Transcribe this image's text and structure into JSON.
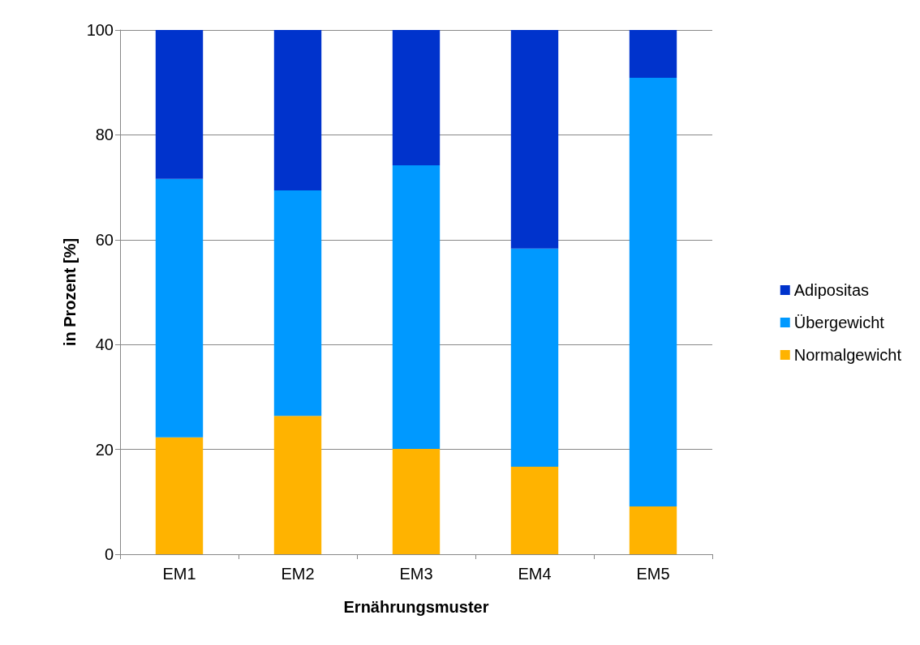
{
  "chart_data": {
    "type": "bar",
    "stacked": true,
    "xlabel": "Ernährungsmuster",
    "ylabel": "in Prozent [%]",
    "categories": [
      "EM1",
      "EM2",
      "EM3",
      "EM4",
      "EM5"
    ],
    "series": [
      {
        "name": "Normalgewicht",
        "color": "#ffb300",
        "values": [
          22.3,
          26.4,
          20.1,
          16.7,
          9.1
        ]
      },
      {
        "name": "Übergewicht",
        "color": "#0099ff",
        "values": [
          49.3,
          43.0,
          54.1,
          41.6,
          81.8
        ]
      },
      {
        "name": "Adipositas",
        "color": "#0033cc",
        "values": [
          28.4,
          30.6,
          25.8,
          41.7,
          9.1
        ]
      }
    ],
    "ylim": [
      0,
      100
    ],
    "yticks": [
      0,
      20,
      40,
      60,
      80,
      100
    ],
    "grid": "y",
    "legend": "right"
  }
}
